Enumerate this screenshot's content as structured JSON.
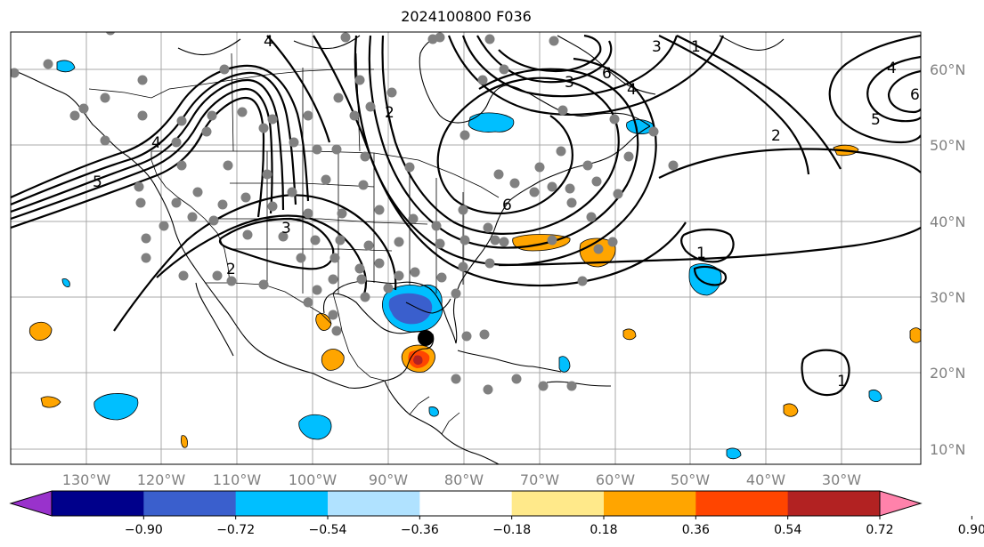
{
  "title": "2024100800 F036",
  "lon_labels": [
    "130°W",
    "120°W",
    "110°W",
    "100°W",
    "90°W",
    "80°W",
    "70°W",
    "60°W",
    "50°W",
    "40°W",
    "30°W"
  ],
  "lat_labels": [
    "60°N",
    "50°N",
    "40°N",
    "30°N",
    "20°N",
    "10°N"
  ],
  "colorbar": {
    "colors": [
      "#9932cc",
      "#00008b",
      "#3a5fcd",
      "#00bfff",
      "#b0e2ff",
      "#ffffff",
      "#ffe98a",
      "#ffa500",
      "#ff4500",
      "#b22222",
      "#ff82ab"
    ],
    "tick_labels": [
      "−0.90",
      "−0.72",
      "−0.54",
      "−0.36",
      "−0.18",
      "0.18",
      "0.36",
      "0.54",
      "0.72",
      "0.90"
    ]
  },
  "contour_labels": [
    "2",
    "3",
    "4",
    "5",
    "6",
    "6",
    "3",
    "4",
    "1",
    "2",
    "4",
    "5",
    "6",
    "1",
    "3",
    "2",
    "1",
    "4"
  ],
  "colors": {
    "grid": "#a9a9a9",
    "station_dot": "#808080",
    "storm_center": "#000000"
  }
}
